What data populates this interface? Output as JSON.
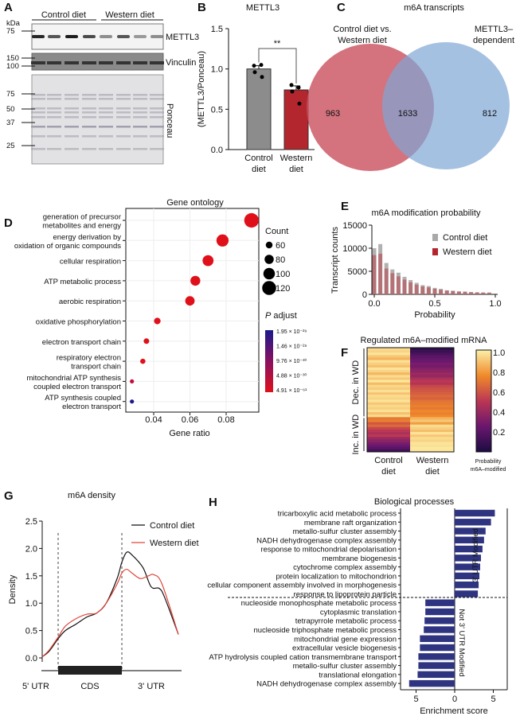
{
  "panel_letters": [
    "A",
    "B",
    "C",
    "D",
    "E",
    "F",
    "G",
    "H"
  ],
  "chart_data": [
    {
      "panel": "A",
      "type": "western-blot",
      "group_labels": [
        "Control diet",
        "Western diet"
      ],
      "kda_label": "kDa",
      "blots": [
        {
          "label": "METTL3",
          "markers": [
            "75"
          ],
          "lane_intensity": [
            0.9,
            0.7,
            0.95,
            0.75,
            0.45,
            0.7,
            0.4,
            0.45
          ]
        },
        {
          "label": "Vinculin",
          "markers": [
            "150",
            "100"
          ]
        },
        {
          "label": "Ponceau",
          "markers": [
            "75",
            "50",
            "37",
            "25"
          ]
        }
      ]
    },
    {
      "panel": "B",
      "type": "bar",
      "title": "METTL3",
      "ylabel": "(METTL3/Ponceau)",
      "categories": [
        "Control diet",
        "Western diet"
      ],
      "category_lines": [
        [
          "Control",
          "diet"
        ],
        [
          "Western",
          "diet"
        ]
      ],
      "values": [
        1.0,
        0.74
      ],
      "sem": [
        0.04,
        0.05
      ],
      "points": [
        [
          1.04,
          1.05,
          0.96,
          0.9
        ],
        [
          0.8,
          0.77,
          0.72,
          0.57
        ]
      ],
      "colors": [
        "#8c8c8c",
        "#b3262e"
      ],
      "ylim": [
        0,
        1.5
      ],
      "yticks": [
        "0.0",
        "0.5",
        "1.0",
        "1.5"
      ],
      "significance": "**"
    },
    {
      "panel": "C",
      "type": "venn",
      "title": "m6A transcripts",
      "sets": [
        {
          "name_lines": [
            "Control diet vs.",
            "Western diet"
          ],
          "only": "963",
          "color": "#c9505e"
        },
        {
          "name_lines": [
            "METTL3–",
            "dependent"
          ],
          "only": "812",
          "color": "#7fa7d6"
        }
      ],
      "overlap": "1633"
    },
    {
      "panel": "D",
      "type": "scatter",
      "title": "Gene ontology",
      "xlabel": "Gene ratio",
      "xticks": [
        "0.04",
        "0.06",
        "0.08"
      ],
      "xlim": [
        0.026,
        0.0965
      ],
      "terms": [
        {
          "lines": [
            "generation of precursor",
            "metabolites and energy"
          ],
          "gene_ratio": 0.094,
          "count": 125,
          "p_adjust": "4.91 × 10⁻⁶¹"
        },
        {
          "lines": [
            "energy derivation by",
            "oxidation of organic compounds"
          ],
          "gene_ratio": 0.078,
          "count": 105,
          "p_adjust": "4.91 × 10⁻⁶¹"
        },
        {
          "lines": [
            "cellular respiration"
          ],
          "gene_ratio": 0.07,
          "count": 95,
          "p_adjust": "4.91 × 10⁻⁶¹"
        },
        {
          "lines": [
            "ATP metabolic process"
          ],
          "gene_ratio": 0.063,
          "count": 86,
          "p_adjust": "4.91 × 10⁻⁶¹"
        },
        {
          "lines": [
            "aerobic respiration"
          ],
          "gene_ratio": 0.06,
          "count": 82,
          "p_adjust": "4.91 × 10⁻⁶¹"
        },
        {
          "lines": [
            "oxidative phosphorylation"
          ],
          "gene_ratio": 0.042,
          "count": 58,
          "p_adjust": "4.91 × 10⁻⁶¹"
        },
        {
          "lines": [
            "electron transport chain"
          ],
          "gene_ratio": 0.036,
          "count": 50,
          "p_adjust": "4.91 × 10⁻⁶¹"
        },
        {
          "lines": [
            "respiratory electron",
            "transport chain"
          ],
          "gene_ratio": 0.034,
          "count": 47,
          "p_adjust": "4.91 × 10⁻⁶¹"
        },
        {
          "lines": [
            "mitochondrial ATP synthesis",
            "coupled electron transport"
          ],
          "gene_ratio": 0.028,
          "count": 38,
          "p_adjust": "4.88 × 10⁻³⁰"
        },
        {
          "lines": [
            "ATP synthesis coupled",
            "electron transport"
          ],
          "gene_ratio": 0.028,
          "count": 38,
          "p_adjust": "1.95 × 10⁻²⁹"
        }
      ],
      "size_legend": {
        "title": "Count",
        "values": [
          "60",
          "80",
          "100",
          "120"
        ]
      },
      "color_legend": {
        "title_italic": "P",
        "title_rest": " adjust",
        "labels": [
          "1.95 × 10⁻²⁹",
          "1.46 × 10⁻²⁹",
          "9.76 × 10⁻³⁰",
          "4.88 × 10⁻³⁰",
          "4.91 × 10⁻⁶¹"
        ],
        "colors": [
          "#1a1a8c",
          "#e0101a"
        ]
      }
    },
    {
      "panel": "E",
      "type": "bar",
      "title": "m6A modification probability",
      "xlabel": "Probability",
      "ylabel": "Transcript counts",
      "xlim": [
        0,
        1.0
      ],
      "xticks": [
        "0.0",
        "0.5",
        "1.0"
      ],
      "ylim": [
        0,
        15000
      ],
      "yticks": [
        "0",
        "5000",
        "10000",
        "15000"
      ],
      "x": [
        0,
        0.05,
        0.1,
        0.15,
        0.2,
        0.25,
        0.3,
        0.35,
        0.4,
        0.45,
        0.5,
        0.55,
        0.6,
        0.65,
        0.7,
        0.75,
        0.8,
        0.85,
        0.9,
        0.95
      ],
      "series": [
        {
          "name": "Control diet",
          "color": "#a9a9a9",
          "values": [
            10000,
            10900,
            6800,
            5400,
            4700,
            3800,
            3100,
            2500,
            2000,
            1800,
            1400,
            1200,
            900,
            800,
            650,
            600,
            500,
            450,
            420,
            400
          ]
        },
        {
          "name": "Western diet",
          "color": "#b3262e",
          "values": [
            8500,
            8800,
            5600,
            4600,
            3900,
            3200,
            2600,
            2100,
            1700,
            1500,
            1200,
            1000,
            800,
            700,
            600,
            550,
            450,
            400,
            360,
            350
          ]
        }
      ]
    },
    {
      "panel": "F",
      "type": "heatmap",
      "title": "Regulated m6A–modified mRNA",
      "columns": [
        [
          "Control",
          "diet"
        ],
        [
          "Western",
          "diet"
        ]
      ],
      "row_groups": [
        {
          "label": "Dec. in WD",
          "control": [
            0.95,
            0.93,
            0.97,
            0.9,
            0.85,
            0.96,
            0.92,
            0.88,
            0.97,
            0.93,
            0.86,
            0.95,
            0.9,
            0.98,
            0.87,
            0.94,
            0.91,
            0.96,
            0.89,
            0.95,
            0.93,
            0.97,
            0.9,
            0.94,
            0.92,
            0.96,
            0.88,
            0.95
          ],
          "western": [
            0.05,
            0.1,
            0.15,
            0.2,
            0.22,
            0.25,
            0.3,
            0.28,
            0.33,
            0.35,
            0.4,
            0.38,
            0.45,
            0.5,
            0.48,
            0.55,
            0.58,
            0.6,
            0.62,
            0.65,
            0.63,
            0.68,
            0.7,
            0.72,
            0.7,
            0.74,
            0.72,
            0.75
          ]
        },
        {
          "label": "Inc. in WD",
          "control": [
            0.7,
            0.72,
            0.6,
            0.65,
            0.55,
            0.5,
            0.45,
            0.5,
            0.4,
            0.35,
            0.3,
            0.25,
            0.2,
            0.12
          ],
          "western": [
            0.85,
            0.9,
            0.8,
            0.95,
            0.92,
            0.88,
            0.97,
            0.9,
            0.95,
            0.93,
            0.97,
            0.96,
            0.98,
            0.97
          ]
        }
      ],
      "colorbar": {
        "ticks": [
          "1.0",
          "0.8",
          "0.6",
          "0.4",
          "0.2"
        ],
        "label_lines": [
          "Probability",
          "m6A–modified"
        ]
      }
    },
    {
      "panel": "G",
      "type": "line",
      "title": "m6A density",
      "ylabel": "Density",
      "ylim": [
        0,
        2.5
      ],
      "yticks": [
        "0.0",
        "0.5",
        "1.0",
        "1.5",
        "2.0",
        "2.5"
      ],
      "regions": [
        "5' UTR",
        "CDS",
        "3' UTR"
      ],
      "region_bounds": [
        0.117,
        0.585
      ],
      "series": [
        {
          "name": "Control diet",
          "color": "#111111",
          "x": [
            0,
            0.05,
            0.117,
            0.17,
            0.25,
            0.33,
            0.4,
            0.47,
            0.55,
            0.585,
            0.62,
            0.66,
            0.74,
            0.8,
            0.86,
            0.9,
            1.0
          ],
          "y": [
            0.02,
            0.12,
            0.35,
            0.5,
            0.62,
            0.75,
            0.82,
            1.0,
            1.45,
            1.75,
            1.93,
            1.88,
            1.65,
            1.3,
            1.27,
            1.1,
            0.43
          ]
        },
        {
          "name": "Western diet",
          "color": "#e0443a",
          "x": [
            0,
            0.05,
            0.117,
            0.17,
            0.25,
            0.33,
            0.4,
            0.47,
            0.55,
            0.585,
            0.62,
            0.66,
            0.72,
            0.78,
            0.82,
            0.88,
            1.0
          ],
          "y": [
            0.02,
            0.14,
            0.38,
            0.58,
            0.72,
            0.8,
            0.82,
            1.0,
            1.35,
            1.55,
            1.62,
            1.55,
            1.45,
            1.5,
            1.52,
            1.35,
            0.43
          ]
        }
      ]
    },
    {
      "panel": "H",
      "type": "bar-horizontal",
      "title": "Biological processes",
      "xlabel": "Enrichment score",
      "xticks": [
        "5",
        "0",
        "5"
      ],
      "color": "#2e3480",
      "groups": [
        {
          "label": "3' UTR Modified",
          "terms": [
            "tricarboxylic acid metabolic process",
            "membrane raft organization",
            "metallo-sulfur cluster assembly",
            "NADH dehydrogenase complex assembly",
            "response to mitochondrial depolarisation",
            "membrane biogenesis",
            "cytochrome complex assembly",
            "protein localization to mitochondrion",
            "cellular component assembly involved in morphogenesis",
            "response to lipoprotein particle"
          ],
          "values": [
            5.2,
            4.7,
            4.0,
            3.8,
            3.6,
            3.4,
            3.3,
            3.2,
            3.1,
            3.0
          ]
        },
        {
          "label": "Not 3' UTR Modified",
          "terms": [
            "nucleoside monophosphate metabolic process",
            "cytoplasmic translation",
            "tetrapyrrole metabolic process",
            "nucleoside triphosphate metabolic process",
            "mitochondrial gene expression",
            "extracellular vesicle biogenesis",
            "ATP hydrolysis coupled cation transmembrane transport",
            "metallo-sulfur cluster assembly",
            "translational elongation",
            "NADH dehydrogenase complex assembly"
          ],
          "values": [
            -3.8,
            -3.8,
            -3.9,
            -4.0,
            -4.5,
            -4.5,
            -4.7,
            -4.7,
            -4.8,
            -5.9
          ]
        }
      ]
    }
  ]
}
